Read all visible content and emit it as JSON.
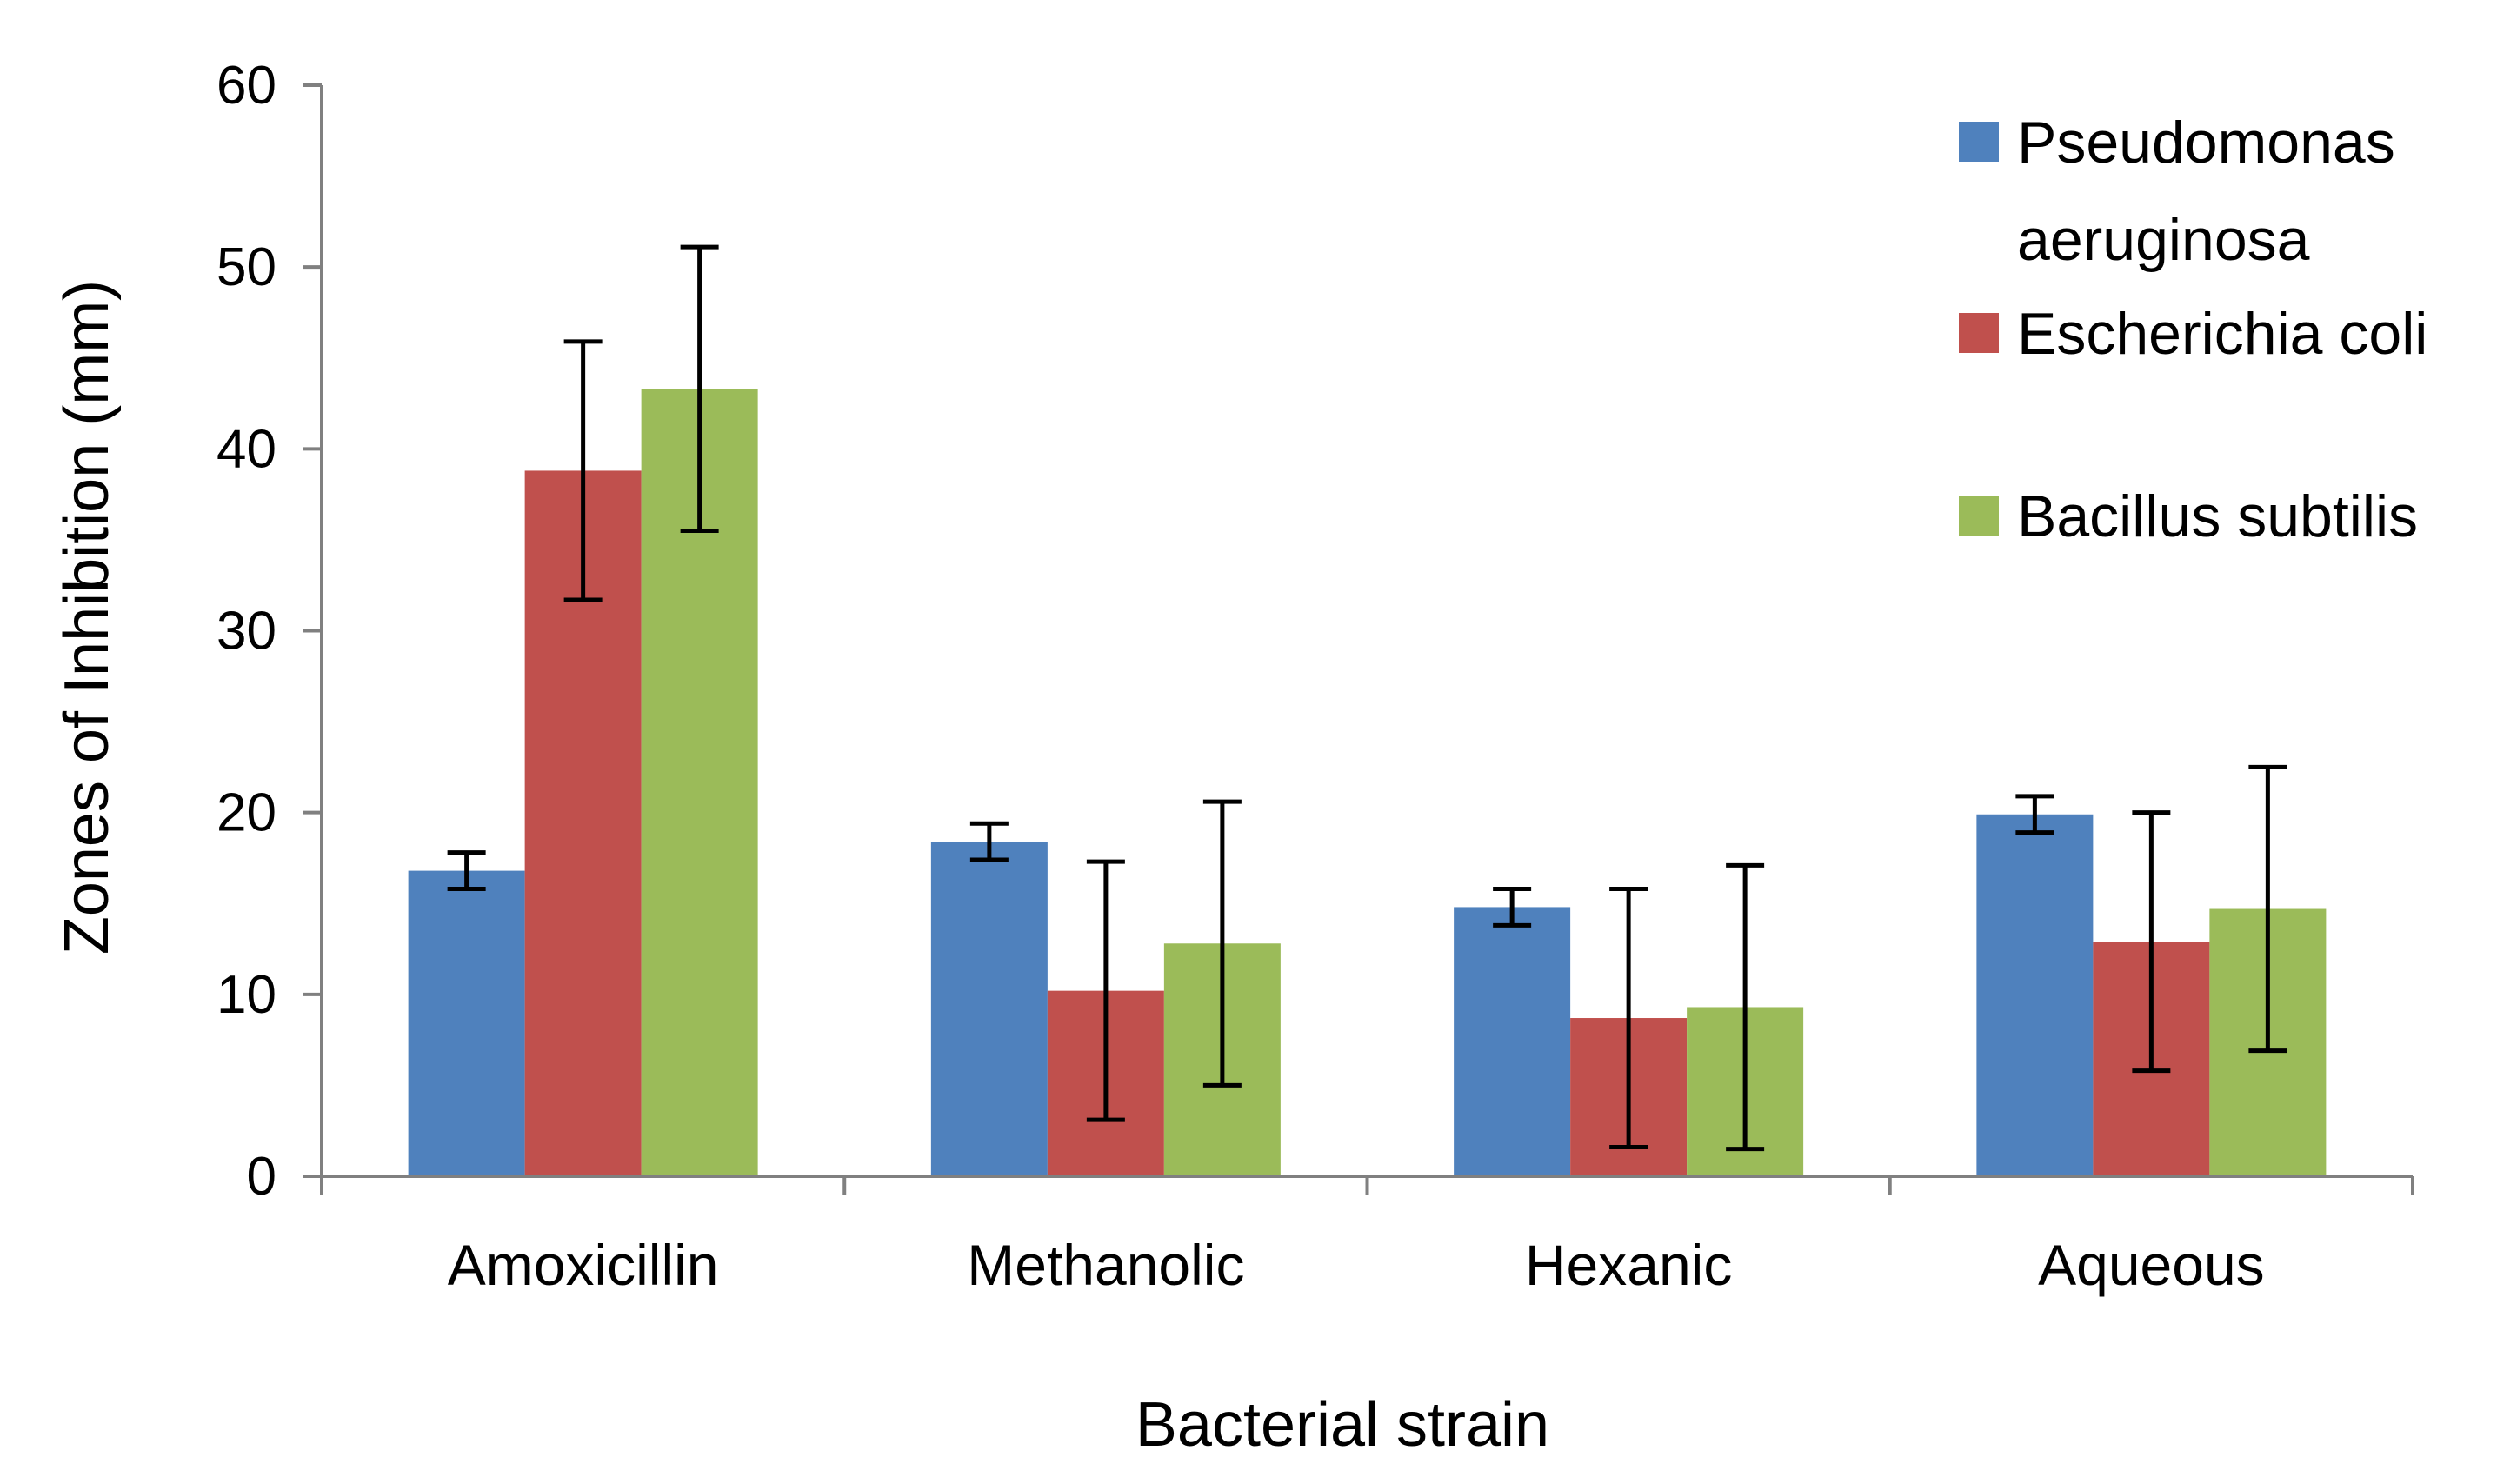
{
  "chart_data": {
    "type": "bar",
    "title": "",
    "xlabel": "Bacterial strain",
    "ylabel": "Zones of Inhibition (mm)",
    "ylim": [
      0,
      60
    ],
    "yticks": [
      0,
      10,
      20,
      30,
      40,
      50,
      60
    ],
    "grid": false,
    "legend_position": "top-right",
    "categories": [
      "Amoxicillin",
      "Methanolic",
      "Hexanic",
      "Aqueous"
    ],
    "series": [
      {
        "name": "Pseudomonas aeruginosa",
        "legend_lines": [
          "Pseudomonas",
          "aeruginosa"
        ],
        "color": "#4F81BD",
        "values": [
          16.8,
          18.4,
          14.8,
          19.9
        ],
        "errors": [
          1.0,
          1.0,
          1.0,
          1.0
        ]
      },
      {
        "name": "Escherichia coli",
        "legend_lines": [
          "Escherichia coli"
        ],
        "color": "#C0504D",
        "values": [
          38.8,
          10.2,
          8.7,
          12.9
        ],
        "errors": [
          7.1,
          7.1,
          7.1,
          7.1
        ]
      },
      {
        "name": "Bacillus subtilis",
        "legend_lines": [
          "Bacillus subtilis"
        ],
        "color": "#9BBB59",
        "values": [
          43.3,
          12.8,
          9.3,
          14.7
        ],
        "errors": [
          7.8,
          7.8,
          7.8,
          7.8
        ]
      }
    ]
  }
}
